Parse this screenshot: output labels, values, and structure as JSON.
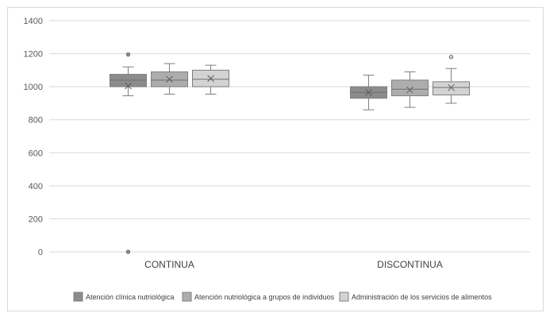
{
  "chart_data": {
    "type": "box",
    "categories": [
      "CONTINUA",
      "DISCONTINUA"
    ],
    "y_ticks": [
      "0",
      "200",
      "400",
      "600",
      "800",
      "1000",
      "1200",
      "1400"
    ],
    "ylim": [
      0,
      1400
    ],
    "grid": true,
    "legend_position": "bottom",
    "series": [
      {
        "name": "Atención clínica nutriológica",
        "color": "#8c8c8c",
        "boxes": [
          {
            "category": "CONTINUA",
            "min": 945,
            "q1": 1000,
            "median": 1040,
            "q3": 1075,
            "max": 1120,
            "mean": 1005,
            "outliers": [
              1195,
              0
            ]
          },
          {
            "category": "DISCONTINUA",
            "min": 860,
            "q1": 930,
            "median": 965,
            "q3": 1000,
            "max": 1070,
            "mean": 965,
            "outliers": []
          }
        ]
      },
      {
        "name": "Atención nutriológica a grupos de individuos",
        "color": "#adadad",
        "boxes": [
          {
            "category": "CONTINUA",
            "min": 955,
            "q1": 1000,
            "median": 1040,
            "q3": 1090,
            "max": 1140,
            "mean": 1045,
            "outliers": []
          },
          {
            "category": "DISCONTINUA",
            "min": 875,
            "q1": 945,
            "median": 985,
            "q3": 1040,
            "max": 1090,
            "mean": 980,
            "outliers": []
          }
        ]
      },
      {
        "name": "Administración de los servicios de alimentos",
        "color": "#d3d3d3",
        "boxes": [
          {
            "category": "CONTINUA",
            "min": 955,
            "q1": 1000,
            "median": 1045,
            "q3": 1100,
            "max": 1130,
            "mean": 1050,
            "outliers": []
          },
          {
            "category": "DISCONTINUA",
            "min": 900,
            "q1": 950,
            "median": 995,
            "q3": 1030,
            "max": 1110,
            "mean": 995,
            "outliers": [
              1180
            ]
          }
        ]
      }
    ]
  }
}
